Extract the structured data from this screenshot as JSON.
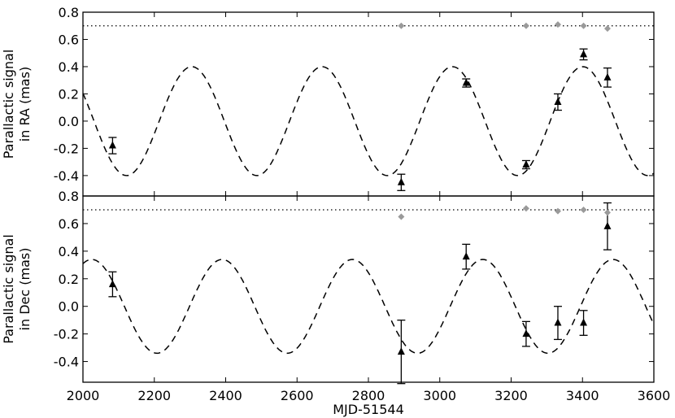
{
  "chart_data": [
    {
      "type": "scatter",
      "panel": "ra",
      "ylabel_line1": "Parallactic signal",
      "ylabel_line2": "in RA (mas)",
      "xlim": [
        2000,
        3600
      ],
      "ylim": [
        -0.55,
        0.8
      ],
      "yticks": [
        "-0.4",
        "-0.2",
        "0.0",
        "0.2",
        "0.4",
        "0.6",
        "0.8"
      ],
      "reference_line": 0.7,
      "model_curve": {
        "amplitude": 0.4,
        "period": 365.25,
        "peak_at": 2305
      },
      "series": [
        {
          "marker": "triangle",
          "points": [
            {
              "x": 2083,
              "y": -0.18,
              "err": 0.06
            },
            {
              "x": 2892,
              "y": -0.45,
              "err": 0.06
            },
            {
              "x": 3074,
              "y": 0.28,
              "err": 0.03
            },
            {
              "x": 3242,
              "y": -0.32,
              "err": 0.03
            },
            {
              "x": 3331,
              "y": 0.14,
              "err": 0.06
            },
            {
              "x": 3403,
              "y": 0.49,
              "err": 0.04
            },
            {
              "x": 3470,
              "y": 0.32,
              "err": 0.07
            }
          ]
        },
        {
          "marker": "diamond",
          "points": [
            {
              "x": 2892,
              "y": 0.7
            },
            {
              "x": 3242,
              "y": 0.7
            },
            {
              "x": 3331,
              "y": 0.71
            },
            {
              "x": 3403,
              "y": 0.7
            },
            {
              "x": 3470,
              "y": 0.68
            }
          ]
        }
      ]
    },
    {
      "type": "scatter",
      "panel": "dec",
      "ylabel_line1": "Parallactic signal",
      "ylabel_line2": "in Dec (mas)",
      "xlabel": "MJD-51544",
      "xlim": [
        2000,
        3600
      ],
      "ylim": [
        -0.55,
        0.8
      ],
      "xticks": [
        "2000",
        "2200",
        "2400",
        "2600",
        "2800",
        "3000",
        "3200",
        "3400",
        "3600"
      ],
      "yticks": [
        "-0.4",
        "-0.2",
        "0.0",
        "0.2",
        "0.4",
        "0.6",
        "0.8"
      ],
      "reference_line": 0.7,
      "model_curve": {
        "amplitude": 0.34,
        "period": 365.25,
        "peak_at": 2390
      },
      "series": [
        {
          "marker": "triangle",
          "points": [
            {
              "x": 2083,
              "y": 0.16,
              "err": 0.09
            },
            {
              "x": 2892,
              "y": -0.33,
              "err": 0.23
            },
            {
              "x": 3074,
              "y": 0.36,
              "err": 0.09
            },
            {
              "x": 3242,
              "y": -0.2,
              "err": 0.09
            },
            {
              "x": 3331,
              "y": -0.12,
              "err": 0.12
            },
            {
              "x": 3403,
              "y": -0.12,
              "err": 0.09
            },
            {
              "x": 3470,
              "y": 0.58,
              "err": 0.17
            }
          ]
        },
        {
          "marker": "diamond",
          "points": [
            {
              "x": 2892,
              "y": 0.65
            },
            {
              "x": 3242,
              "y": 0.71
            },
            {
              "x": 3331,
              "y": 0.69
            },
            {
              "x": 3403,
              "y": 0.7
            },
            {
              "x": 3470,
              "y": 0.68
            }
          ]
        }
      ]
    }
  ]
}
